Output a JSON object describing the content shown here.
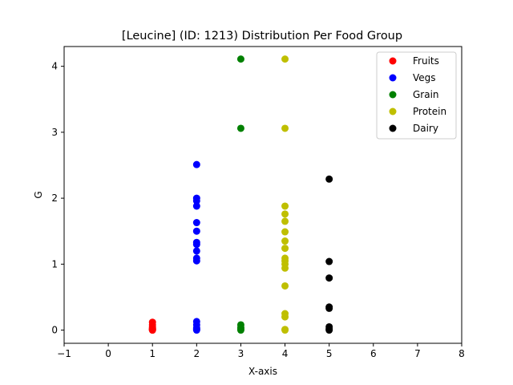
{
  "chart_data": {
    "type": "scatter",
    "title": "[Leucine] (ID: 1213) Distribution Per Food Group",
    "xlabel": "X-axis",
    "ylabel": "G",
    "xlim": [
      -1,
      8
    ],
    "ylim": [
      -0.2,
      4.3
    ],
    "xticks": [
      -1,
      0,
      1,
      2,
      3,
      4,
      5,
      6,
      7,
      8
    ],
    "yticks": [
      0,
      1,
      2,
      3,
      4
    ],
    "grid": false,
    "legend_position": "top-right",
    "series": [
      {
        "name": "Fruits",
        "color": "#ff0000",
        "points": [
          [
            1,
            0.12
          ],
          [
            1,
            0.08
          ],
          [
            1,
            0.05
          ],
          [
            1,
            0.03
          ],
          [
            1,
            0.02
          ],
          [
            1,
            0.01
          ],
          [
            1,
            0.0
          ],
          [
            1,
            0.0
          ]
        ]
      },
      {
        "name": "Vegs",
        "color": "#0000ff",
        "points": [
          [
            2,
            2.51
          ],
          [
            2,
            2.0
          ],
          [
            2,
            1.96
          ],
          [
            2,
            1.88
          ],
          [
            2,
            1.63
          ],
          [
            2,
            1.5
          ],
          [
            2,
            1.33
          ],
          [
            2,
            1.3
          ],
          [
            2,
            1.2
          ],
          [
            2,
            1.09
          ],
          [
            2,
            1.05
          ],
          [
            2,
            0.13
          ],
          [
            2,
            0.08
          ],
          [
            2,
            0.03
          ],
          [
            2,
            0.01
          ],
          [
            2,
            0.0
          ]
        ]
      },
      {
        "name": "Grain",
        "color": "#008000",
        "points": [
          [
            3,
            4.11
          ],
          [
            3,
            3.06
          ],
          [
            3,
            0.08
          ],
          [
            3,
            0.04
          ],
          [
            3,
            0.02
          ],
          [
            3,
            0.0
          ]
        ]
      },
      {
        "name": "Protein",
        "color": "#bfbf00",
        "points": [
          [
            4,
            4.11
          ],
          [
            4,
            3.06
          ],
          [
            4,
            1.88
          ],
          [
            4,
            1.76
          ],
          [
            4,
            1.65
          ],
          [
            4,
            1.49
          ],
          [
            4,
            1.35
          ],
          [
            4,
            1.24
          ],
          [
            4,
            1.09
          ],
          [
            4,
            1.05
          ],
          [
            4,
            1.0
          ],
          [
            4,
            0.94
          ],
          [
            4,
            0.67
          ],
          [
            4,
            0.25
          ],
          [
            4,
            0.2
          ],
          [
            4,
            0.01
          ],
          [
            4,
            0.0
          ]
        ]
      },
      {
        "name": "Dairy",
        "color": "#000000",
        "points": [
          [
            5,
            2.29
          ],
          [
            5,
            1.04
          ],
          [
            5,
            0.79
          ],
          [
            5,
            0.35
          ],
          [
            5,
            0.33
          ],
          [
            5,
            0.05
          ],
          [
            5,
            0.02
          ],
          [
            5,
            0.0
          ]
        ]
      }
    ]
  }
}
